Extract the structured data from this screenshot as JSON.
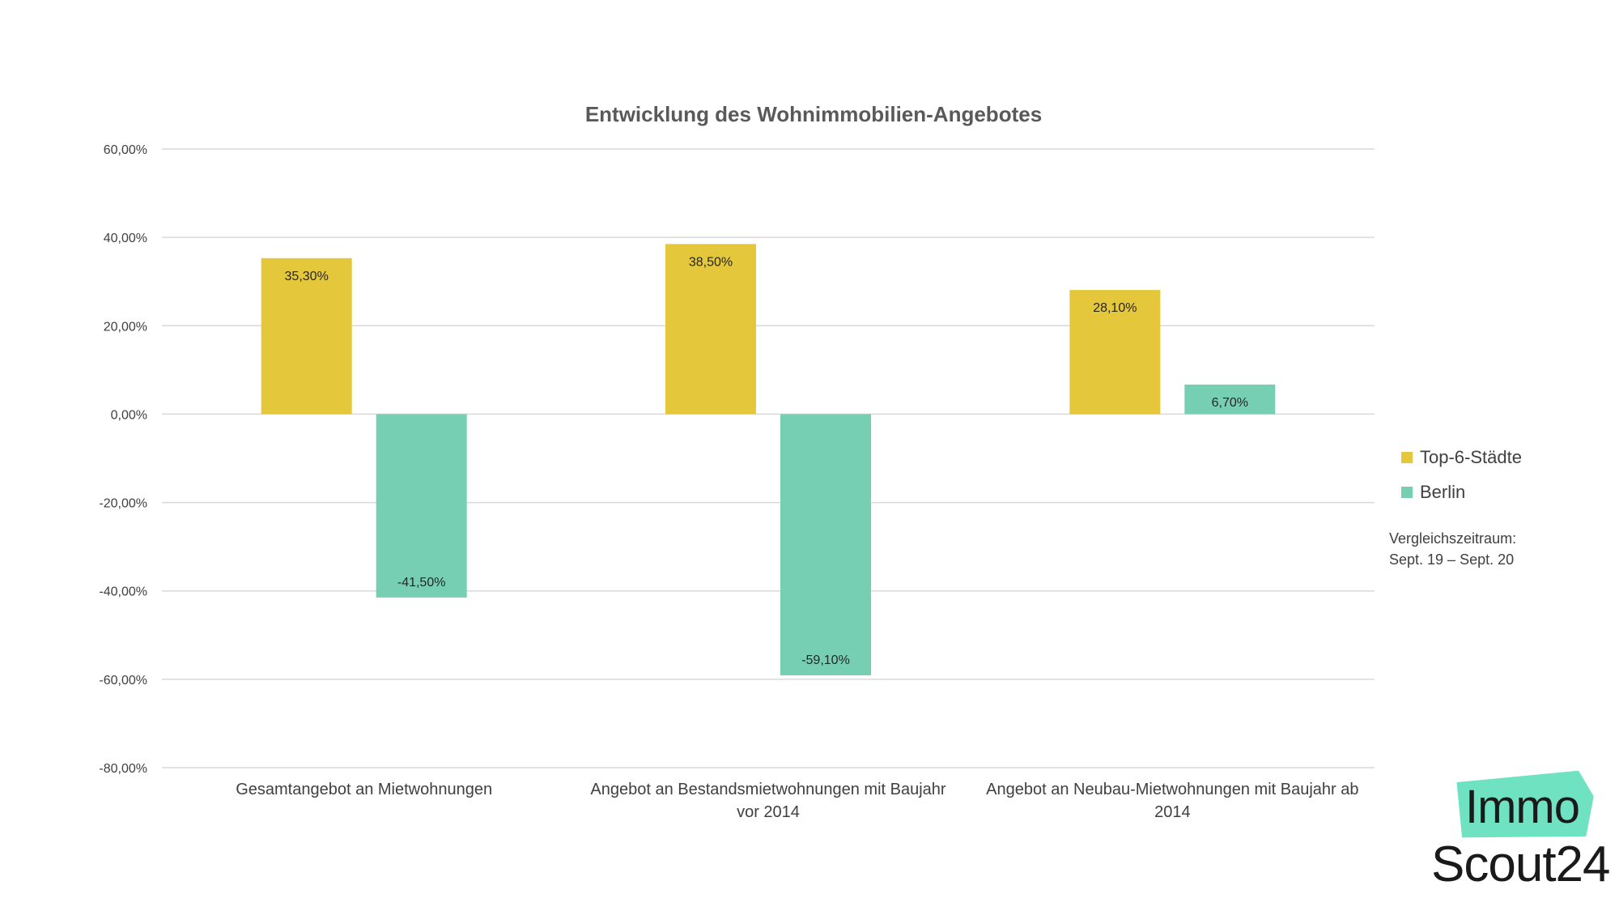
{
  "chart_data": {
    "type": "bar",
    "title": "Entwicklung des Wohnimmobilien-Angebotes",
    "categories": [
      [
        "Gesamtangebot an Mietwohnungen"
      ],
      [
        "Angebot an Bestandsmietwohnungen mit Baujahr",
        "vor 2014"
      ],
      [
        "Angebot an Neubau-Mietwohnungen mit Baujahr ab",
        "2014"
      ]
    ],
    "series": [
      {
        "name": "Top-6-Städte",
        "color": "#e4c73b",
        "values": [
          35.3,
          38.5,
          28.1
        ],
        "labels": [
          "35,30%",
          "38,50%",
          "28,10%"
        ]
      },
      {
        "name": "Berlin",
        "color": "#76cfb2",
        "values": [
          -41.5,
          -59.1,
          6.7
        ],
        "labels": [
          "-41,50%",
          "-59,10%",
          "6,70%"
        ]
      }
    ],
    "ylim": [
      -80,
      60
    ],
    "yticks": [
      60,
      40,
      20,
      0,
      -20,
      -40,
      -60,
      -80
    ],
    "ytick_labels": [
      "60,00%",
      "40,00%",
      "20,00%",
      "0,00%",
      "-20,00%",
      "-40,00%",
      "-60,00%",
      "-80,00%"
    ],
    "xlabel": "",
    "ylabel": "",
    "grid": true,
    "legend_position": "right"
  },
  "note": {
    "line1": "Vergleichszeitraum:",
    "line2": "Sept. 19 – Sept. 20"
  },
  "logo": {
    "line1": "Immo",
    "line2": "Scout24",
    "accent": "#6fe3c1"
  }
}
